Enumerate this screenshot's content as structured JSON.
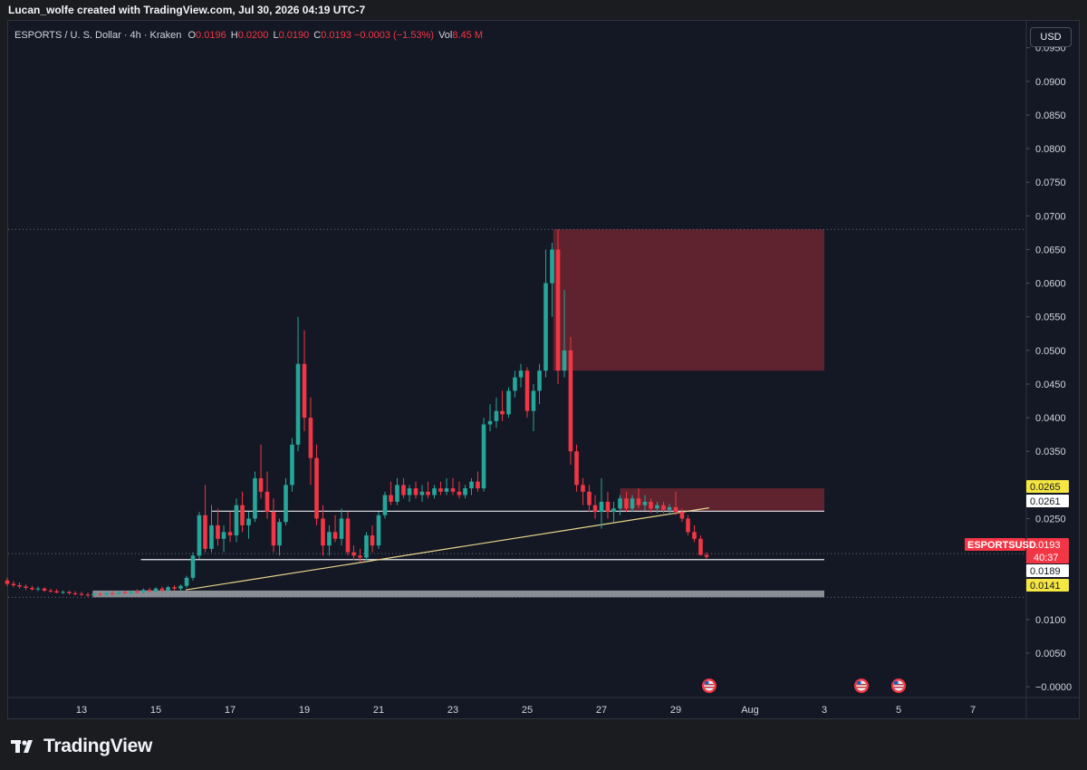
{
  "header": {
    "credit": "Lucan_wolfe created with TradingView.com, Jul 30, 2026 04:19 UTC-7"
  },
  "legend": {
    "symbol": "ESPORTS / U. S. Dollar · 4h · Kraken",
    "o_key": "O",
    "o_val": "0.0196",
    "h_key": "H",
    "h_val": "0.0200",
    "l_key": "L",
    "l_val": "0.0190",
    "c_key": "C",
    "c_val": "0.0193 −0.0003 (−1.53%)",
    "vol_key": "Vol",
    "vol_val": "8.45 M"
  },
  "currency_button": "USD",
  "brand": "TradingView",
  "colors": {
    "up": "#26a69a",
    "down": "#f23645",
    "zone": "#6b2630",
    "trendline": "#e8d48b",
    "support_zone": "#9ea3a8",
    "label_yellow": "#f5e642"
  },
  "chart_data": {
    "type": "candlestick",
    "symbol": "ESPORTSUSD",
    "interval": "4h",
    "y_ticks": [
      "0.0950",
      "0.0900",
      "0.0850",
      "0.0800",
      "0.0750",
      "0.0700",
      "0.0650",
      "0.0600",
      "0.0550",
      "0.0500",
      "0.0450",
      "0.0400",
      "0.0350",
      "0.0300",
      "0.0250",
      "0.0200",
      "0.0150",
      "0.0100",
      "0.0050",
      "−0.0000"
    ],
    "x_ticks": [
      "13",
      "15",
      "17",
      "19",
      "21",
      "23",
      "25",
      "27",
      "29",
      "Aug",
      "3",
      "5",
      "7"
    ],
    "ylim": [
      -0.0016,
      0.099
    ],
    "price_labels": [
      {
        "name": "zone-top",
        "text": "0.0265",
        "value": 0.0265,
        "style": "yellow"
      },
      {
        "name": "horizontal-line",
        "text": "0.0261",
        "value": 0.0261,
        "style": "white"
      },
      {
        "name": "last-price",
        "text": "0.0193",
        "value": 0.0193,
        "style": "red",
        "symbol": "ESPORTSUSD",
        "countdown": "40:37"
      },
      {
        "name": "support-line",
        "text": "0.0189",
        "value": 0.0189,
        "style": "white"
      },
      {
        "name": "support-zone",
        "text": "0.0141",
        "value": 0.0141,
        "style": "yellow"
      }
    ],
    "zones": [
      {
        "name": "upper-resistance-zone",
        "from_day": 25.7,
        "to_day": 33.0,
        "low": 0.047,
        "high": 0.068
      },
      {
        "name": "lower-resistance-zone",
        "from_day": 27.5,
        "to_day": 33.0,
        "low": 0.0261,
        "high": 0.0295
      }
    ],
    "hlines": [
      {
        "name": "resistance-line",
        "from_day": 16.5,
        "to_day": 33.0,
        "value": 0.0261
      },
      {
        "name": "support-line",
        "from_day": 14.6,
        "to_day": 33.0,
        "value": 0.0189
      }
    ],
    "trendline": {
      "from_day": 15.8,
      "from_value": 0.0144,
      "to_day": 29.9,
      "to_value": 0.0266
    },
    "support_band": {
      "from_day": 13.3,
      "to_day": 33.0,
      "low": 0.0133,
      "high": 0.0143
    },
    "events": [
      29.9,
      34.0,
      35.0
    ],
    "candles": [
      [
        11.0,
        0.0158,
        0.0162,
        0.015,
        0.0153
      ],
      [
        11.17,
        0.0153,
        0.0157,
        0.0148,
        0.0151
      ],
      [
        11.33,
        0.0151,
        0.0155,
        0.0146,
        0.0149
      ],
      [
        11.5,
        0.0149,
        0.0152,
        0.0144,
        0.0147
      ],
      [
        11.67,
        0.0147,
        0.015,
        0.0143,
        0.0145
      ],
      [
        11.83,
        0.0145,
        0.0149,
        0.0142,
        0.0146
      ],
      [
        12.0,
        0.0146,
        0.0148,
        0.0141,
        0.0143
      ],
      [
        12.17,
        0.0143,
        0.0146,
        0.014,
        0.0142
      ],
      [
        12.33,
        0.0142,
        0.0145,
        0.0139,
        0.014
      ],
      [
        12.5,
        0.014,
        0.0143,
        0.0138,
        0.0141
      ],
      [
        12.67,
        0.0141,
        0.0143,
        0.0137,
        0.0139
      ],
      [
        12.83,
        0.0139,
        0.0142,
        0.0136,
        0.0138
      ],
      [
        13.0,
        0.0138,
        0.0141,
        0.0135,
        0.0137
      ],
      [
        13.17,
        0.0137,
        0.014,
        0.0134,
        0.0136
      ],
      [
        13.33,
        0.0136,
        0.0139,
        0.0134,
        0.0138
      ],
      [
        13.5,
        0.0138,
        0.014,
        0.0135,
        0.0137
      ],
      [
        13.67,
        0.0137,
        0.0141,
        0.0135,
        0.0139
      ],
      [
        13.83,
        0.0139,
        0.0142,
        0.0136,
        0.0138
      ],
      [
        14.0,
        0.0138,
        0.0142,
        0.0136,
        0.0141
      ],
      [
        14.17,
        0.0141,
        0.0143,
        0.0137,
        0.0139
      ],
      [
        14.33,
        0.0139,
        0.0143,
        0.0137,
        0.0142
      ],
      [
        14.5,
        0.0142,
        0.0145,
        0.0139,
        0.014
      ],
      [
        14.67,
        0.014,
        0.0146,
        0.0138,
        0.0144
      ],
      [
        14.83,
        0.0144,
        0.0147,
        0.014,
        0.0142
      ],
      [
        15.0,
        0.0142,
        0.0148,
        0.014,
        0.0146
      ],
      [
        15.17,
        0.0146,
        0.0149,
        0.0141,
        0.0143
      ],
      [
        15.33,
        0.0143,
        0.015,
        0.0141,
        0.0148
      ],
      [
        15.5,
        0.0148,
        0.0151,
        0.0143,
        0.0146
      ],
      [
        15.67,
        0.0146,
        0.0152,
        0.0143,
        0.015
      ],
      [
        15.83,
        0.015,
        0.0165,
        0.0147,
        0.0162
      ],
      [
        16.0,
        0.0162,
        0.02,
        0.0158,
        0.0195
      ],
      [
        16.17,
        0.0195,
        0.026,
        0.019,
        0.0255
      ],
      [
        16.33,
        0.0255,
        0.03,
        0.02,
        0.0205
      ],
      [
        16.5,
        0.0205,
        0.027,
        0.02,
        0.024
      ],
      [
        16.67,
        0.024,
        0.0265,
        0.021,
        0.022
      ],
      [
        16.83,
        0.022,
        0.024,
        0.02,
        0.023
      ],
      [
        17.0,
        0.023,
        0.026,
        0.0215,
        0.0225
      ],
      [
        17.17,
        0.0225,
        0.028,
        0.0215,
        0.027
      ],
      [
        17.33,
        0.027,
        0.029,
        0.023,
        0.024
      ],
      [
        17.5,
        0.024,
        0.026,
        0.022,
        0.025
      ],
      [
        17.67,
        0.025,
        0.032,
        0.0245,
        0.031
      ],
      [
        17.83,
        0.031,
        0.036,
        0.028,
        0.029
      ],
      [
        18.0,
        0.029,
        0.032,
        0.025,
        0.026
      ],
      [
        18.17,
        0.026,
        0.028,
        0.02,
        0.021
      ],
      [
        18.33,
        0.021,
        0.025,
        0.0195,
        0.0245
      ],
      [
        18.5,
        0.0245,
        0.031,
        0.024,
        0.03
      ],
      [
        18.67,
        0.03,
        0.037,
        0.029,
        0.036
      ],
      [
        18.83,
        0.036,
        0.055,
        0.035,
        0.048
      ],
      [
        19.0,
        0.048,
        0.053,
        0.038,
        0.04
      ],
      [
        19.17,
        0.04,
        0.043,
        0.03,
        0.034
      ],
      [
        19.33,
        0.034,
        0.036,
        0.024,
        0.025
      ],
      [
        19.5,
        0.025,
        0.027,
        0.0195,
        0.021
      ],
      [
        19.67,
        0.021,
        0.024,
        0.0195,
        0.023
      ],
      [
        19.83,
        0.023,
        0.0255,
        0.0215,
        0.022
      ],
      [
        20.0,
        0.022,
        0.0265,
        0.021,
        0.025
      ],
      [
        20.17,
        0.025,
        0.026,
        0.0195,
        0.02
      ],
      [
        20.33,
        0.02,
        0.021,
        0.0188,
        0.0195
      ],
      [
        20.5,
        0.0195,
        0.0205,
        0.0185,
        0.0192
      ],
      [
        20.67,
        0.0192,
        0.023,
        0.0188,
        0.0225
      ],
      [
        20.83,
        0.0225,
        0.024,
        0.02,
        0.021
      ],
      [
        21.0,
        0.021,
        0.026,
        0.0205,
        0.0255
      ],
      [
        21.17,
        0.0255,
        0.029,
        0.025,
        0.0285
      ],
      [
        21.33,
        0.0285,
        0.0305,
        0.027,
        0.0275
      ],
      [
        21.5,
        0.0275,
        0.031,
        0.027,
        0.03
      ],
      [
        21.67,
        0.03,
        0.031,
        0.028,
        0.0285
      ],
      [
        21.83,
        0.0285,
        0.03,
        0.0275,
        0.0295
      ],
      [
        22.0,
        0.0295,
        0.0305,
        0.028,
        0.0285
      ],
      [
        22.17,
        0.0285,
        0.03,
        0.0275,
        0.029
      ],
      [
        22.33,
        0.029,
        0.0305,
        0.028,
        0.0285
      ],
      [
        22.5,
        0.0285,
        0.03,
        0.028,
        0.0295
      ],
      [
        22.67,
        0.0295,
        0.0305,
        0.0285,
        0.029
      ],
      [
        22.83,
        0.029,
        0.031,
        0.0285,
        0.0295
      ],
      [
        23.0,
        0.0295,
        0.031,
        0.0285,
        0.029
      ],
      [
        23.17,
        0.029,
        0.0305,
        0.028,
        0.0285
      ],
      [
        23.33,
        0.0285,
        0.03,
        0.028,
        0.0295
      ],
      [
        23.5,
        0.0295,
        0.031,
        0.0285,
        0.0305
      ],
      [
        23.67,
        0.0305,
        0.032,
        0.029,
        0.0295
      ],
      [
        23.83,
        0.0295,
        0.04,
        0.029,
        0.039
      ],
      [
        24.0,
        0.039,
        0.042,
        0.038,
        0.0395
      ],
      [
        24.17,
        0.0395,
        0.043,
        0.0385,
        0.041
      ],
      [
        24.33,
        0.041,
        0.044,
        0.0395,
        0.0405
      ],
      [
        24.5,
        0.0405,
        0.0445,
        0.04,
        0.044
      ],
      [
        24.67,
        0.044,
        0.047,
        0.043,
        0.046
      ],
      [
        24.83,
        0.046,
        0.048,
        0.0445,
        0.047
      ],
      [
        25.0,
        0.047,
        0.0475,
        0.04,
        0.041
      ],
      [
        25.17,
        0.041,
        0.045,
        0.038,
        0.044
      ],
      [
        25.33,
        0.044,
        0.048,
        0.042,
        0.047
      ],
      [
        25.5,
        0.047,
        0.065,
        0.046,
        0.06
      ],
      [
        25.67,
        0.06,
        0.066,
        0.055,
        0.065
      ],
      [
        25.83,
        0.065,
        0.068,
        0.045,
        0.047
      ],
      [
        26.0,
        0.047,
        0.059,
        0.046,
        0.05
      ],
      [
        26.17,
        0.05,
        0.052,
        0.033,
        0.035
      ],
      [
        26.33,
        0.035,
        0.036,
        0.029,
        0.03
      ],
      [
        26.5,
        0.03,
        0.031,
        0.027,
        0.029
      ],
      [
        26.67,
        0.029,
        0.03,
        0.026,
        0.027
      ],
      [
        26.83,
        0.027,
        0.0285,
        0.025,
        0.026
      ],
      [
        27.0,
        0.026,
        0.031,
        0.0235,
        0.0275
      ],
      [
        27.17,
        0.0275,
        0.029,
        0.025,
        0.026
      ],
      [
        27.33,
        0.026,
        0.0275,
        0.0245,
        0.0265
      ],
      [
        27.5,
        0.0265,
        0.0285,
        0.0255,
        0.028
      ],
      [
        27.67,
        0.028,
        0.029,
        0.026,
        0.0265
      ],
      [
        27.83,
        0.0265,
        0.0285,
        0.026,
        0.028
      ],
      [
        28.0,
        0.028,
        0.0295,
        0.0265,
        0.027
      ],
      [
        28.17,
        0.027,
        0.0285,
        0.0262,
        0.0275
      ],
      [
        28.33,
        0.0275,
        0.028,
        0.0258,
        0.0265
      ],
      [
        28.5,
        0.0265,
        0.0275,
        0.0258,
        0.027
      ],
      [
        28.67,
        0.027,
        0.0275,
        0.0258,
        0.0263
      ],
      [
        28.83,
        0.0263,
        0.0272,
        0.0255,
        0.0267
      ],
      [
        29.0,
        0.0267,
        0.029,
        0.0255,
        0.026
      ],
      [
        29.17,
        0.026,
        0.0265,
        0.0245,
        0.025
      ],
      [
        29.33,
        0.025,
        0.0255,
        0.0225,
        0.023
      ],
      [
        29.5,
        0.023,
        0.024,
        0.0215,
        0.022
      ],
      [
        29.67,
        0.022,
        0.0225,
        0.0195,
        0.0196
      ],
      [
        29.83,
        0.0196,
        0.02,
        0.019,
        0.0193
      ]
    ]
  }
}
